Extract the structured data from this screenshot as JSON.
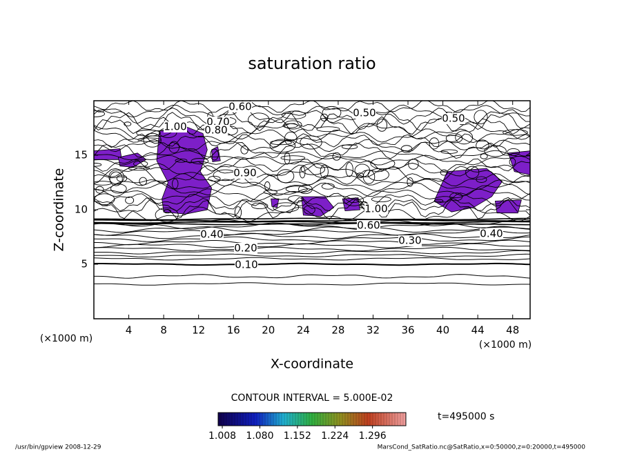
{
  "chart_data": {
    "type": "contour",
    "title": "saturation ratio",
    "x_label": "X-coordinate",
    "y_label": "Z-coordinate",
    "x_unit": "(×1000 m)",
    "y_unit": "(×1000 m)",
    "xlim": [
      0,
      50
    ],
    "xticks": [
      4,
      8,
      12,
      16,
      20,
      24,
      28,
      32,
      36,
      40,
      44,
      48
    ],
    "ylim": [
      0,
      20
    ],
    "yticks": [
      5,
      10,
      15
    ],
    "contour_labels": [
      "0.60",
      "0.70",
      "1.00",
      "0.80",
      "0.50",
      "0.50",
      "0.90",
      "1.00",
      "0.60",
      "0.40",
      "0.20",
      "0.10",
      "0.30",
      "0.40"
    ],
    "contour_interval": "CONTOUR INTERVAL = 5.000E-02",
    "colorbar_lim": [
      1.0,
      1.36
    ],
    "colorbar_ticks": [
      1.008,
      {
        "value": 1.08,
        "label": "1.080"
      },
      1.152,
      1.224,
      1.296
    ],
    "fill_color": "#7d1fc8",
    "time_label": "t=495000 s",
    "footer_left": "/usr/bin/gpview   2008-12-29",
    "footer_right": "MarsCond_SatRatio.nc@SatRatio,x=0:50000,z=0:20000,t=495000"
  }
}
